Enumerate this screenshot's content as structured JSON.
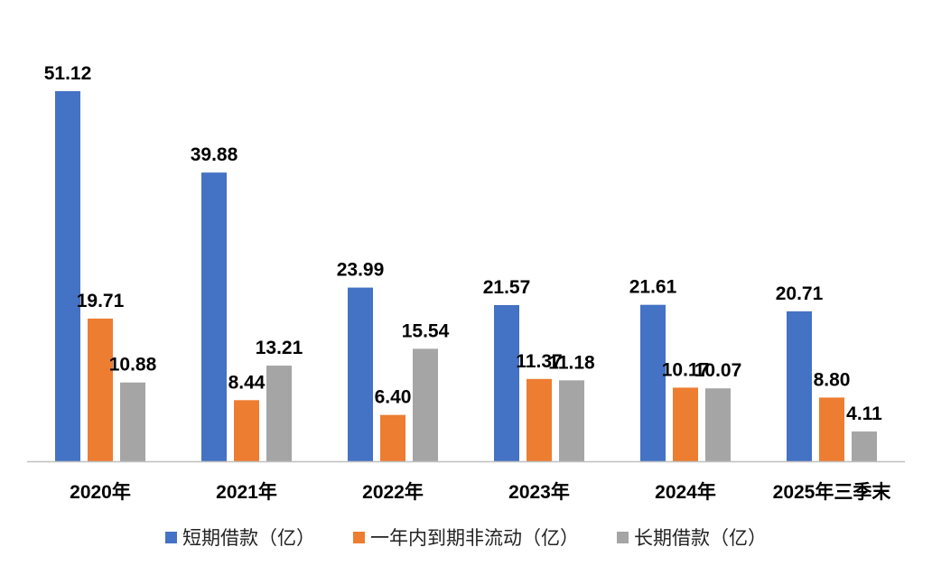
{
  "colors": {
    "series1": "#4472C4",
    "series2": "#ED7D31",
    "series3": "#A5A5A5",
    "axis": "#BFBFBF",
    "text": "#000000"
  },
  "chart_data": {
    "type": "bar",
    "categories": [
      "2020年",
      "2021年",
      "2022年",
      "2023年",
      "2024年",
      "2025年三季末"
    ],
    "series": [
      {
        "name": "短期借款（亿）",
        "values": [
          51.12,
          39.88,
          23.99,
          21.57,
          21.61,
          20.71
        ],
        "labels": [
          "51.12",
          "39.88",
          "23.99",
          "21.57",
          "21.61",
          "20.71"
        ]
      },
      {
        "name": "一年内到期非流动（亿）",
        "values": [
          19.71,
          8.44,
          6.4,
          11.37,
          10.17,
          8.8
        ],
        "labels": [
          "19.71",
          "8.44",
          "6.40",
          "11.37",
          "10.17",
          "8.80"
        ]
      },
      {
        "name": "长期借款（亿）",
        "values": [
          10.88,
          13.21,
          15.54,
          11.18,
          10.07,
          4.11
        ],
        "labels": [
          "10.88",
          "13.21",
          "15.54",
          "11.18",
          "10.07",
          "4.11"
        ]
      }
    ],
    "ylim": [
      0,
      60
    ],
    "grid": false,
    "legend": "bottom"
  }
}
